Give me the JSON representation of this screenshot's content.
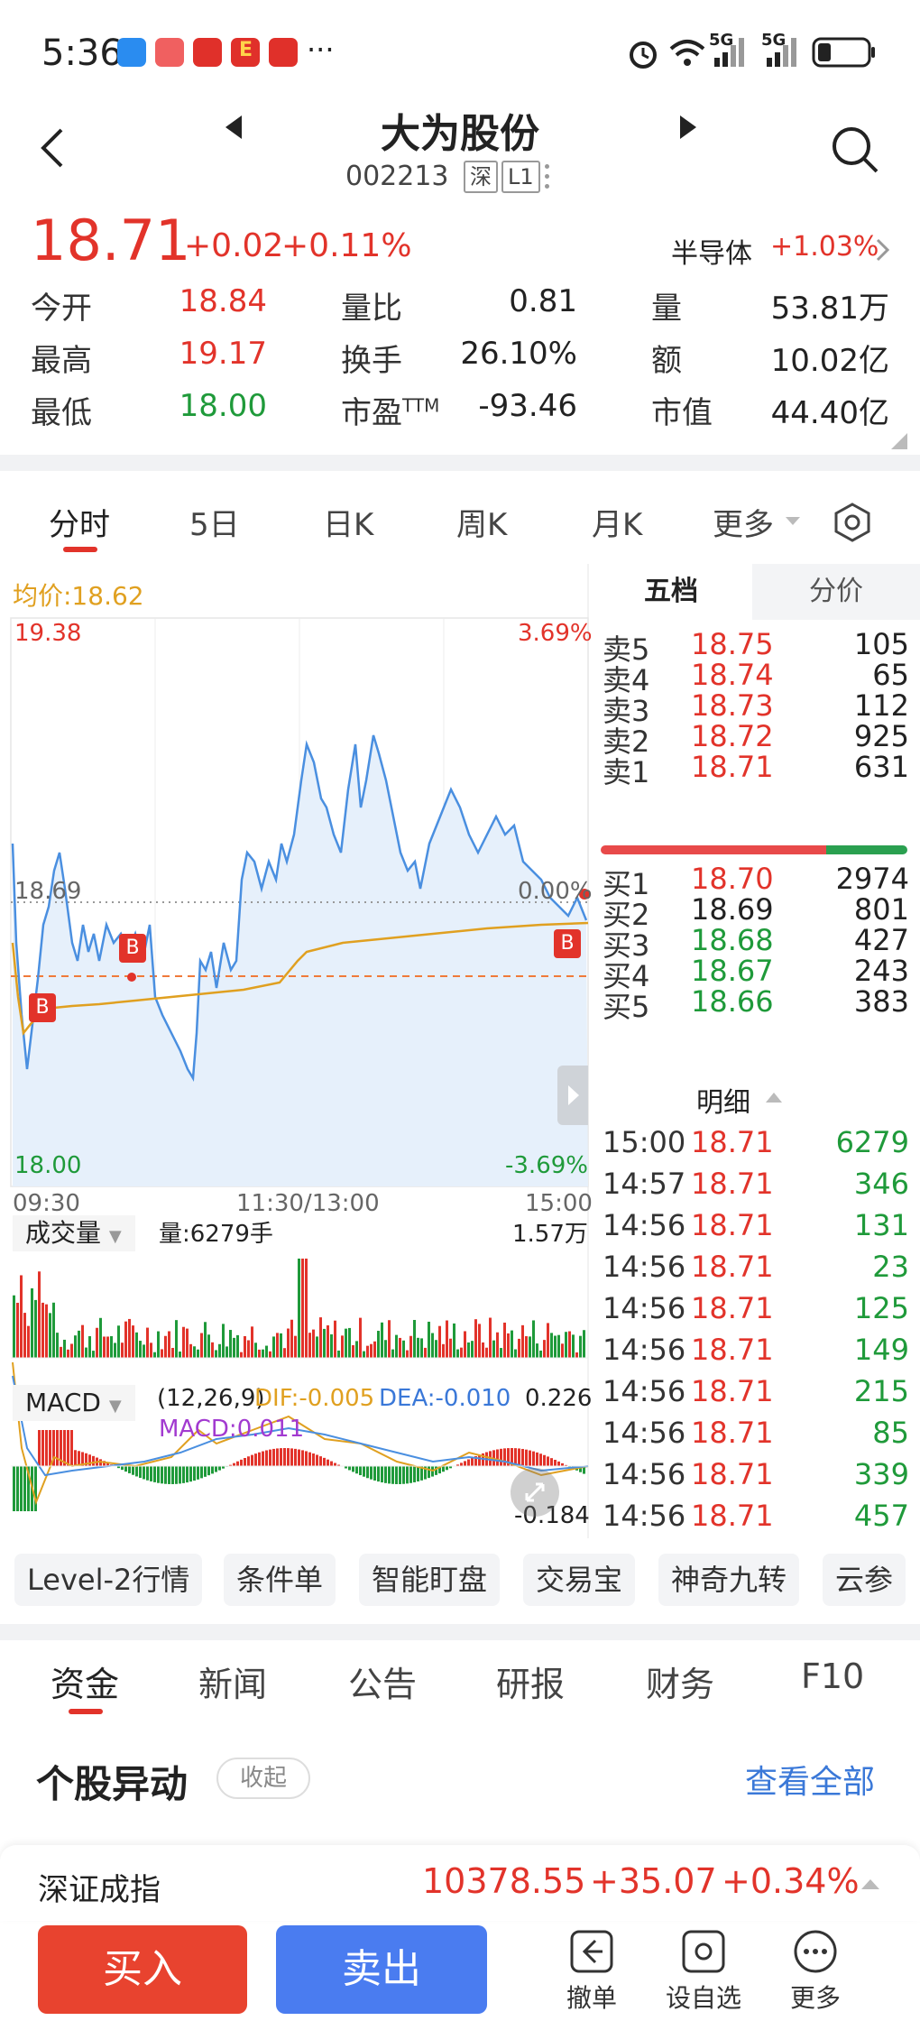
{
  "status": {
    "time": "5:36",
    "dots": "···",
    "net_5g_a": "5G",
    "net_5g_b": "5G"
  },
  "header": {
    "name": "大为股份",
    "code": "002213",
    "tag_market": "深",
    "tag_level": "L1"
  },
  "quote": {
    "price": "18.71",
    "change": "+0.02",
    "change_pct": "+0.11%",
    "sector_name": "半导体",
    "sector_pct": "+1.03%",
    "rows": [
      {
        "l1": "今开",
        "v1": "18.84",
        "l2": "量比",
        "v2": "0.81",
        "l3": "量",
        "v3": "53.81万"
      },
      {
        "l1": "最高",
        "v1": "19.17",
        "l2": "换手",
        "v2": "26.10%",
        "l3": "额",
        "v3": "10.02亿"
      },
      {
        "l1": "最低",
        "v1": "18.00",
        "l2": "市盈",
        "l2_sup": "TTM",
        "v2": "-93.46",
        "l3": "市值",
        "v3": "44.40亿"
      }
    ]
  },
  "kline_tabs": [
    "分时",
    "5日",
    "日K",
    "周K",
    "月K",
    "更多"
  ],
  "chart": {
    "avg_label": "均价:18.62",
    "y_high": "19.38",
    "y_prev": "18.69",
    "y_low": "18.00",
    "pct_high": "3.69%",
    "pct_mid": "0.00%",
    "pct_low": "-3.69%",
    "x_start": "09:30",
    "x_mid": "11:30/13:00",
    "x_end": "15:00",
    "buy_marker": "B",
    "volume_label": "成交量",
    "volume_now": "量:6279手",
    "volume_max": "1.57万",
    "macd_label": "MACD",
    "macd_params": "(12,26,9)",
    "macd_dif": "DIF:-0.005",
    "macd_dea": "DEA:-0.010",
    "macd_top": "0.226",
    "macd_val": "MACD:0.011",
    "macd_bottom": "-0.184"
  },
  "chart_data": {
    "type": "line",
    "ylim": [
      18.0,
      19.38
    ],
    "series": [],
    "colors": {
      "price": "#4a8fe0",
      "avg": "#e0a020",
      "up": "#e2332a",
      "down": "#1f9a3a"
    }
  },
  "orderbook": {
    "tabs": [
      "五档",
      "分价"
    ],
    "asks": [
      {
        "label": "卖5",
        "price": "18.75",
        "vol": "105"
      },
      {
        "label": "卖4",
        "price": "18.74",
        "vol": "65"
      },
      {
        "label": "卖3",
        "price": "18.73",
        "vol": "112"
      },
      {
        "label": "卖2",
        "price": "18.72",
        "vol": "925"
      },
      {
        "label": "卖1",
        "price": "18.71",
        "vol": "631"
      }
    ],
    "bids": [
      {
        "label": "买1",
        "price": "18.70",
        "vol": "2974"
      },
      {
        "label": "买2",
        "price": "18.69",
        "vol": "801"
      },
      {
        "label": "买3",
        "price": "18.68",
        "vol": "427"
      },
      {
        "label": "买4",
        "price": "18.67",
        "vol": "243"
      },
      {
        "label": "买5",
        "price": "18.66",
        "vol": "383"
      }
    ],
    "detail_label": "明细",
    "trades": [
      {
        "time": "15:00",
        "price": "18.71",
        "vol": "6279"
      },
      {
        "time": "14:57",
        "price": "18.71",
        "vol": "346"
      },
      {
        "time": "14:56",
        "price": "18.71",
        "vol": "131"
      },
      {
        "time": "14:56",
        "price": "18.71",
        "vol": "23"
      },
      {
        "time": "14:56",
        "price": "18.71",
        "vol": "125"
      },
      {
        "time": "14:56",
        "price": "18.71",
        "vol": "149"
      },
      {
        "time": "14:56",
        "price": "18.71",
        "vol": "215"
      },
      {
        "time": "14:56",
        "price": "18.71",
        "vol": "85"
      },
      {
        "time": "14:56",
        "price": "18.71",
        "vol": "339"
      },
      {
        "time": "14:56",
        "price": "18.71",
        "vol": "457"
      }
    ]
  },
  "tools": [
    "Level-2行情",
    "条件单",
    "智能盯盘",
    "交易宝",
    "神奇九转",
    "云参"
  ],
  "bottom_tabs": [
    "资金",
    "新闻",
    "公告",
    "研报",
    "财务",
    "F10"
  ],
  "section": {
    "title": "个股异动",
    "collapse": "收起",
    "view_all": "查看全部"
  },
  "index_bar": {
    "name": "深证成指",
    "value": "10378.55",
    "change": "+35.07",
    "pct": "+0.34%"
  },
  "footer": {
    "buy": "买入",
    "sell": "卖出",
    "cancel": "撤单",
    "watch": "设自选",
    "more": "更多"
  }
}
